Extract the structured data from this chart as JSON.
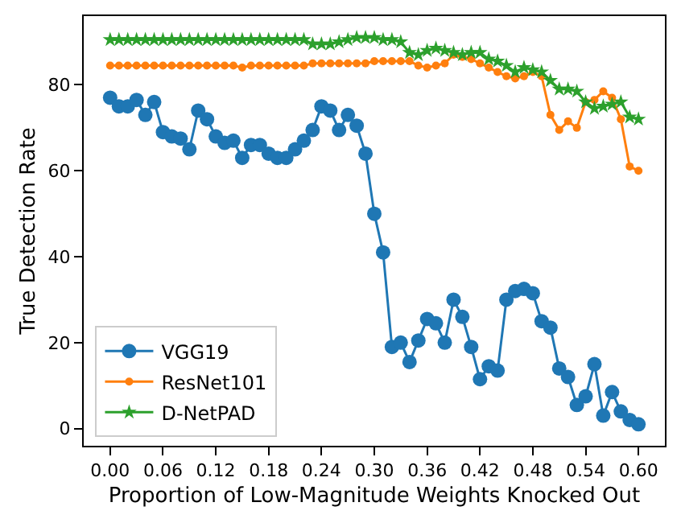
{
  "chart_data": {
    "type": "line",
    "xlabel": "Proportion of Low-Magnitude Weights Knocked Out",
    "ylabel": "True Detection Rate",
    "x": [
      0,
      0.01,
      0.02,
      0.03,
      0.04,
      0.05,
      0.06,
      0.07,
      0.08,
      0.09,
      0.1,
      0.11,
      0.12,
      0.13,
      0.14,
      0.15,
      0.16,
      0.17,
      0.18,
      0.19,
      0.2,
      0.21,
      0.22,
      0.23,
      0.24,
      0.25,
      0.26,
      0.27,
      0.28,
      0.29,
      0.3,
      0.31,
      0.32,
      0.33,
      0.34,
      0.35,
      0.36,
      0.37,
      0.38,
      0.39,
      0.4,
      0.41,
      0.42,
      0.43,
      0.44,
      0.45,
      0.46,
      0.47,
      0.48,
      0.49,
      0.5,
      0.51,
      0.52,
      0.53,
      0.54,
      0.55,
      0.56,
      0.57,
      0.58,
      0.59,
      0.6
    ],
    "series": [
      {
        "name": "VGG19",
        "color": "#1f77b4",
        "marker": "circle",
        "values": [
          77,
          75,
          75,
          76.5,
          73,
          76,
          69,
          68,
          67.5,
          65,
          74,
          72,
          68,
          66.5,
          67,
          63,
          66,
          66,
          64,
          63,
          63,
          65,
          67,
          69.5,
          75,
          74,
          69.5,
          73,
          70.5,
          64,
          50,
          41,
          19,
          20,
          15.5,
          20.5,
          25.5,
          24.5,
          20,
          30,
          26,
          19,
          11.5,
          14.5,
          13.5,
          30,
          32,
          32.5,
          31.5,
          25,
          23.5,
          14,
          12,
          5.5,
          7.5,
          15,
          3,
          8.5,
          4,
          2,
          1
        ]
      },
      {
        "name": "ResNet101",
        "color": "#ff7f0e",
        "marker": "circle",
        "values": [
          84.5,
          84.5,
          84.5,
          84.5,
          84.5,
          84.5,
          84.5,
          84.5,
          84.5,
          84.5,
          84.5,
          84.5,
          84.5,
          84.5,
          84.5,
          84,
          84.5,
          84.5,
          84.5,
          84.5,
          84.5,
          84.5,
          84.5,
          85,
          85,
          85,
          85,
          85,
          85,
          85,
          85.5,
          85.5,
          85.5,
          85.5,
          85.5,
          84.5,
          84,
          84.5,
          85,
          87,
          86.5,
          86,
          85,
          84,
          83,
          82,
          81.5,
          82,
          83,
          82,
          73,
          69.5,
          71.5,
          70,
          76,
          76.5,
          78.5,
          77,
          72,
          61,
          60
        ]
      },
      {
        "name": "D-NetPAD",
        "color": "#2ca02c",
        "marker": "star",
        "values": [
          90.5,
          90.5,
          90.5,
          90.5,
          90.5,
          90.5,
          90.5,
          90.5,
          90.5,
          90.5,
          90.5,
          90.5,
          90.5,
          90.5,
          90.5,
          90.5,
          90.5,
          90.5,
          90.5,
          90.5,
          90.5,
          90.5,
          90.5,
          89.5,
          89.5,
          89.5,
          90,
          90.5,
          91,
          91,
          91,
          90.5,
          90.5,
          90,
          87.5,
          87,
          88,
          88.5,
          88,
          87.5,
          87,
          87.5,
          87.5,
          86,
          85.5,
          84.5,
          83,
          84,
          83.5,
          83,
          81,
          79,
          79,
          78.5,
          76,
          74.5,
          75,
          75.5,
          76,
          72.5,
          72
        ]
      }
    ],
    "xlim": [
      -0.03,
      0.63
    ],
    "ylim": [
      -4,
      96
    ],
    "xticks": [
      {
        "value": 0,
        "label": "0.00"
      },
      {
        "value": 0.06,
        "label": "0.06"
      },
      {
        "value": 0.12,
        "label": "0.12"
      },
      {
        "value": 0.18,
        "label": "0.18"
      },
      {
        "value": 0.24,
        "label": "0.24"
      },
      {
        "value": 0.3,
        "label": "0.30"
      },
      {
        "value": 0.36,
        "label": "0.36"
      },
      {
        "value": 0.42,
        "label": "0.42"
      },
      {
        "value": 0.48,
        "label": "0.48"
      },
      {
        "value": 0.54,
        "label": "0.54"
      },
      {
        "value": 0.6,
        "label": "0.60"
      }
    ],
    "yticks": [
      0,
      20,
      40,
      60,
      80
    ],
    "legend": "bottom left",
    "line_style": "solid"
  }
}
